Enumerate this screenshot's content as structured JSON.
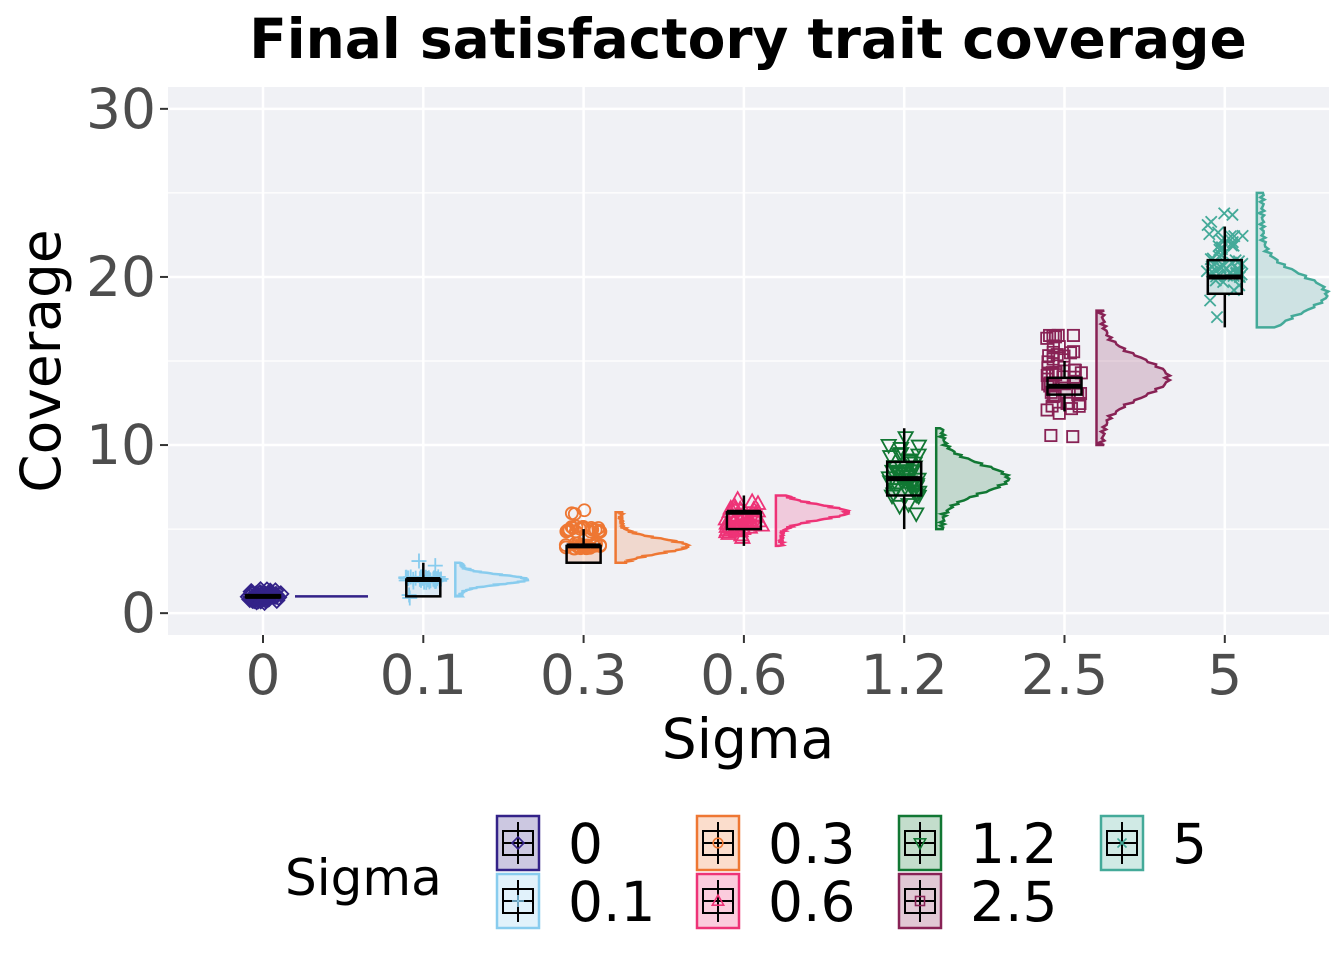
{
  "chart_data": {
    "type": "raincloud",
    "title": "Final satisfactory trait coverage",
    "xlabel": "Sigma",
    "ylabel": "Coverage",
    "categories": [
      "0",
      "0.1",
      "0.3",
      "0.6",
      "1.2",
      "2.5",
      "5"
    ],
    "ylim": [
      -1.3,
      31.3
    ],
    "yticks": [
      0,
      10,
      20,
      30
    ],
    "grid": true,
    "legend": {
      "title": "Sigma",
      "position": "bottom"
    },
    "series": [
      {
        "name": "0",
        "color": "#332288",
        "shape": "diamond",
        "box": {
          "min": 1,
          "q1": 1,
          "median": 1,
          "q3": 1,
          "max": 1
        },
        "range": [
          1,
          1
        ],
        "mode": 1
      },
      {
        "name": "0.1",
        "color": "#88CCEE",
        "shape": "plus",
        "box": {
          "min": 1,
          "q1": 1,
          "median": 2,
          "q3": 2,
          "max": 3
        },
        "range": [
          1,
          3
        ],
        "mode": 2
      },
      {
        "name": "0.3",
        "color": "#EE7733",
        "shape": "circle",
        "box": {
          "min": 3,
          "q1": 3,
          "median": 4,
          "q3": 4,
          "max": 5
        },
        "range": [
          3,
          6
        ],
        "mode": 4
      },
      {
        "name": "0.6",
        "color": "#EE3377",
        "shape": "triangle-up",
        "box": {
          "min": 4,
          "q1": 5,
          "median": 6,
          "q3": 6,
          "max": 7
        },
        "range": [
          4,
          7
        ],
        "mode": 6
      },
      {
        "name": "1.2",
        "color": "#117733",
        "shape": "triangle-down",
        "box": {
          "min": 5,
          "q1": 7,
          "median": 8,
          "q3": 9,
          "max": 11
        },
        "range": [
          5,
          11
        ],
        "mode": 8
      },
      {
        "name": "2.5",
        "color": "#882255",
        "shape": "square",
        "box": {
          "min": 12,
          "q1": 13,
          "median": 13.5,
          "q3": 14,
          "max": 15
        },
        "range": [
          10,
          18
        ],
        "mode": 14
      },
      {
        "name": "5",
        "color": "#44AA99",
        "shape": "x",
        "box": {
          "min": 17,
          "q1": 19,
          "median": 20,
          "q3": 21,
          "max": 23
        },
        "range": [
          17,
          25
        ],
        "mode": 19
      }
    ]
  }
}
